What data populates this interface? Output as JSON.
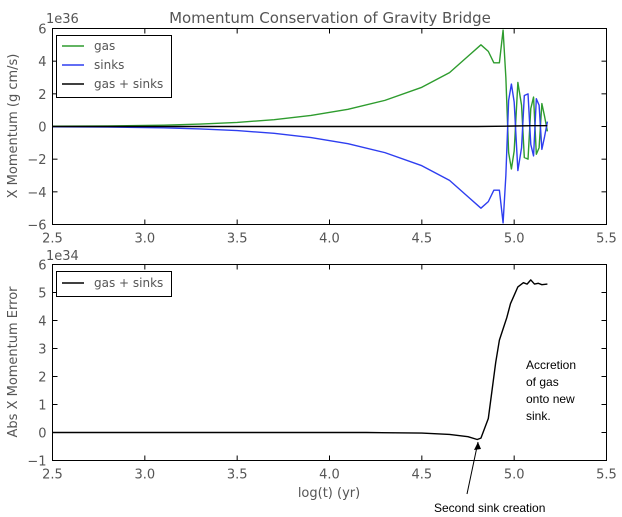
{
  "colors": {
    "gas": "#2e9c2e",
    "sinks": "#2e3ef0",
    "total": "#000000",
    "text": "#555555"
  },
  "chart_data": [
    {
      "type": "line",
      "title": "Momentum Conservation of Gravity Bridge",
      "ylabel": "X Momentum (g cm/s)",
      "xlabel": "",
      "y_multiplier": "1e36",
      "xlim": [
        2.5,
        5.5
      ],
      "ylim": [
        -6,
        6
      ],
      "x_ticks": [
        "2.5",
        "3.0",
        "3.5",
        "4.0",
        "4.5",
        "5.0",
        "5.5"
      ],
      "y_ticks": [
        "6",
        "4",
        "2",
        "0",
        "−2",
        "−4",
        "−6"
      ],
      "legend_position": "top-left",
      "series": [
        {
          "name": "gas",
          "color": "#2e9c2e",
          "points": [
            [
              2.5,
              0.02
            ],
            [
              2.8,
              0.03
            ],
            [
              3.1,
              0.08
            ],
            [
              3.3,
              0.15
            ],
            [
              3.5,
              0.25
            ],
            [
              3.7,
              0.42
            ],
            [
              3.9,
              0.68
            ],
            [
              4.1,
              1.05
            ],
            [
              4.3,
              1.6
            ],
            [
              4.5,
              2.4
            ],
            [
              4.65,
              3.3
            ],
            [
              4.75,
              4.3
            ],
            [
              4.82,
              5.0
            ],
            [
              4.86,
              4.6
            ],
            [
              4.89,
              3.9
            ],
            [
              4.92,
              3.9
            ],
            [
              4.94,
              5.9
            ],
            [
              4.955,
              3.0
            ],
            [
              4.97,
              -1.6
            ],
            [
              4.985,
              -2.6
            ],
            [
              5.0,
              -1.5
            ],
            [
              5.02,
              2.7
            ],
            [
              5.04,
              1.3
            ],
            [
              5.055,
              -1.9
            ],
            [
              5.075,
              -2.0
            ],
            [
              5.09,
              1.1
            ],
            [
              5.105,
              1.8
            ],
            [
              5.12,
              -1.7
            ],
            [
              5.135,
              -1.3
            ],
            [
              5.15,
              1.4
            ],
            [
              5.165,
              0.6
            ],
            [
              5.18,
              -0.3
            ]
          ]
        },
        {
          "name": "sinks",
          "color": "#2e3ef0",
          "points": [
            [
              2.5,
              -0.02
            ],
            [
              2.8,
              -0.03
            ],
            [
              3.1,
              -0.08
            ],
            [
              3.3,
              -0.15
            ],
            [
              3.5,
              -0.25
            ],
            [
              3.7,
              -0.42
            ],
            [
              3.9,
              -0.68
            ],
            [
              4.1,
              -1.05
            ],
            [
              4.3,
              -1.6
            ],
            [
              4.5,
              -2.4
            ],
            [
              4.65,
              -3.3
            ],
            [
              4.75,
              -4.3
            ],
            [
              4.82,
              -5.0
            ],
            [
              4.86,
              -4.6
            ],
            [
              4.89,
              -3.9
            ],
            [
              4.92,
              -3.9
            ],
            [
              4.94,
              -5.9
            ],
            [
              4.955,
              -3.0
            ],
            [
              4.97,
              1.6
            ],
            [
              4.985,
              2.6
            ],
            [
              5.0,
              1.5
            ],
            [
              5.02,
              -2.7
            ],
            [
              5.04,
              -1.3
            ],
            [
              5.055,
              1.9
            ],
            [
              5.075,
              2.0
            ],
            [
              5.09,
              -1.1
            ],
            [
              5.105,
              -1.8
            ],
            [
              5.12,
              1.7
            ],
            [
              5.135,
              1.3
            ],
            [
              5.15,
              -1.4
            ],
            [
              5.165,
              -0.6
            ],
            [
              5.18,
              0.3
            ]
          ]
        },
        {
          "name": "gas + sinks",
          "color": "#000000",
          "points": [
            [
              2.5,
              0.0
            ],
            [
              4.8,
              0.0
            ],
            [
              4.95,
              0.02
            ],
            [
              5.0,
              0.03
            ],
            [
              5.1,
              0.05
            ],
            [
              5.18,
              0.05
            ]
          ]
        }
      ]
    },
    {
      "type": "line",
      "ylabel": "Abs X Momentum Error",
      "xlabel": "log(t) (yr)",
      "y_multiplier": "1e34",
      "xlim": [
        2.5,
        5.5
      ],
      "ylim": [
        -1,
        6
      ],
      "x_ticks": [
        "2.5",
        "3.0",
        "3.5",
        "4.0",
        "4.5",
        "5.0",
        "5.5"
      ],
      "y_ticks": [
        "6",
        "5",
        "4",
        "3",
        "2",
        "1",
        "0",
        "−1"
      ],
      "legend_position": "top-left",
      "series": [
        {
          "name": "gas + sinks",
          "color": "#000000",
          "points": [
            [
              2.5,
              0.0
            ],
            [
              4.2,
              0.0
            ],
            [
              4.5,
              -0.02
            ],
            [
              4.65,
              -0.07
            ],
            [
              4.75,
              -0.15
            ],
            [
              4.8,
              -0.25
            ],
            [
              4.82,
              -0.2
            ],
            [
              4.86,
              0.5
            ],
            [
              4.88,
              1.5
            ],
            [
              4.9,
              2.5
            ],
            [
              4.92,
              3.3
            ],
            [
              4.94,
              3.7
            ],
            [
              4.96,
              4.1
            ],
            [
              4.98,
              4.6
            ],
            [
              5.0,
              4.9
            ],
            [
              5.02,
              5.2
            ],
            [
              5.05,
              5.35
            ],
            [
              5.07,
              5.3
            ],
            [
              5.09,
              5.45
            ],
            [
              5.11,
              5.3
            ],
            [
              5.13,
              5.33
            ],
            [
              5.15,
              5.28
            ],
            [
              5.18,
              5.3
            ]
          ]
        }
      ],
      "annotations": [
        {
          "lines": [
            "Accretion",
            "of gas",
            "onto new",
            "sink."
          ],
          "at": [
            5.07,
            3.5
          ]
        },
        {
          "lines": [
            "Second sink creation"
          ],
          "arrow_to": [
            4.82,
            -0.2
          ],
          "at": [
            4.8,
            -2.3
          ]
        }
      ]
    }
  ]
}
